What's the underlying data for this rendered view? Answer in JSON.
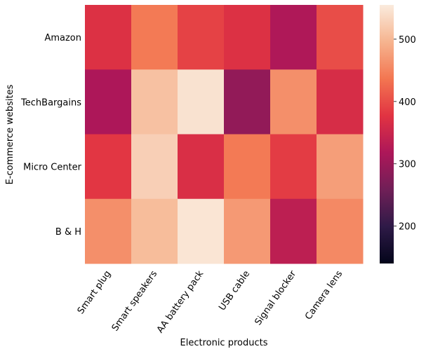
{
  "chart_data": {
    "type": "heatmap",
    "title": "",
    "xlabel": "Electronic products",
    "ylabel": "E-commerce websites",
    "x_categories": [
      "Smart plug",
      "Smart speakers",
      "AA battery pack",
      "USB cable",
      "Signal blocker",
      "Camera lens"
    ],
    "y_categories": [
      "Amazon",
      "TechBargains",
      "Micro Center",
      "B & H"
    ],
    "values": [
      [
        372,
        440,
        390,
        372,
        320,
        400
      ],
      [
        318,
        510,
        545,
        292,
        460,
        365
      ],
      [
        380,
        525,
        368,
        440,
        385,
        475
      ],
      [
        460,
        505,
        548,
        470,
        335,
        455
      ]
    ],
    "colorbar": {
      "min": 140,
      "max": 555,
      "ticks": [
        200,
        300,
        400,
        500
      ],
      "colormap": "rocket",
      "colormap_stops": [
        "#03051a",
        "#2e1a47",
        "#701f57",
        "#ad1759",
        "#e13342",
        "#f37651",
        "#f6b48f",
        "#faebdd"
      ]
    }
  }
}
